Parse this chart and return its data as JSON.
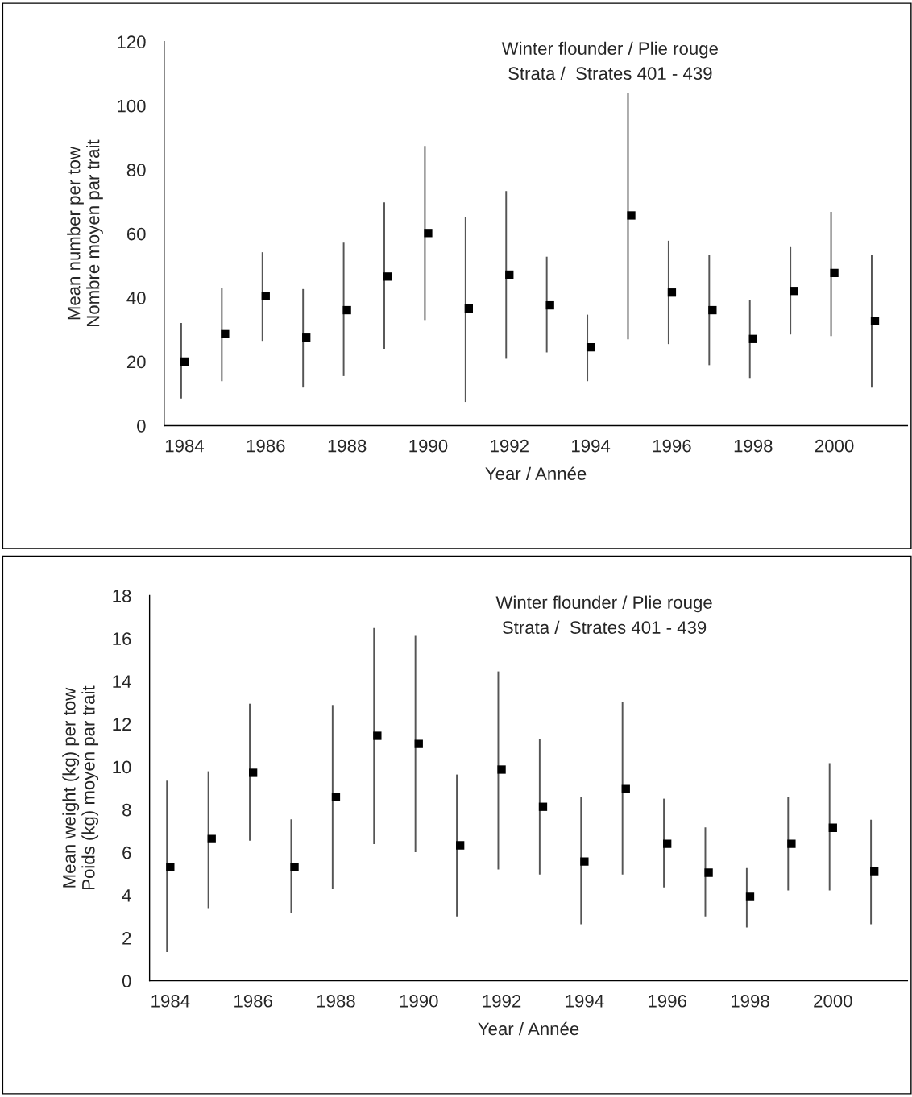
{
  "chart_data": [
    {
      "type": "scatter",
      "title": "Winter flounder / Plie rouge",
      "subtitle": "Strata /  Strates 401 - 439",
      "xlabel": "Year / Année",
      "ylabel": "Mean number per tow\nNombre moyen par trait",
      "categories": [
        "1984",
        null,
        "1986",
        null,
        "1988",
        null,
        "1990",
        null,
        "1992",
        null,
        "1994",
        null,
        "1996",
        null,
        "1998",
        null,
        "2000",
        null
      ],
      "series": [
        {
          "color": "#000000",
          "values": [
            20.0,
            28.6,
            40.6,
            27.5,
            36.1,
            46.6,
            60.2,
            36.6,
            47.2,
            37.6,
            24.5,
            65.7,
            41.6,
            36.1,
            27.1,
            42.1,
            47.7,
            32.6
          ],
          "errors": [
            [
              8.5,
              32.1
            ],
            [
              13.9,
              43.1
            ],
            [
              26.5,
              54.2
            ],
            [
              11.9,
              42.7
            ],
            [
              15.5,
              57.2
            ],
            [
              24.0,
              69.8
            ],
            [
              33.0,
              87.4
            ],
            [
              7.4,
              65.2
            ],
            [
              20.9,
              73.3
            ],
            [
              22.9,
              52.8
            ],
            [
              13.9,
              34.7
            ],
            [
              27.0,
              103.9
            ],
            [
              25.5,
              57.8
            ],
            [
              18.9,
              53.3
            ],
            [
              14.9,
              39.2
            ],
            [
              28.5,
              55.8
            ],
            [
              28.0,
              66.8
            ],
            [
              11.9,
              53.3
            ]
          ]
        }
      ],
      "ylim": [
        0,
        120
      ],
      "yticks": [
        0,
        20,
        40,
        60,
        80,
        100,
        120
      ],
      "marker": "square",
      "grid": false,
      "legend": false
    },
    {
      "type": "scatter",
      "title": "Winter flounder / Plie rouge",
      "subtitle": "Strata /  Strates 401 - 439",
      "xlabel": "Year / Année",
      "ylabel": "Mean weight (kg) per tow\nPoids (kg) moyen par trait",
      "categories": [
        "1984",
        null,
        "1986",
        null,
        "1988",
        null,
        "1990",
        null,
        "1992",
        null,
        "1994",
        null,
        "1996",
        null,
        "1998",
        null,
        "2000",
        null
      ],
      "series": [
        {
          "color": "#000000",
          "values": [
            5.33,
            6.63,
            9.72,
            5.33,
            8.59,
            11.45,
            11.07,
            6.33,
            9.87,
            8.13,
            5.57,
            8.96,
            6.4,
            5.05,
            3.92,
            6.4,
            7.15,
            5.12
          ],
          "errors": [
            [
              1.34,
              9.35
            ],
            [
              3.39,
              9.79
            ],
            [
              6.55,
              12.95
            ],
            [
              3.16,
              7.54
            ],
            [
              4.28,
              12.89
            ],
            [
              6.39,
              16.49
            ],
            [
              6.01,
              16.12
            ],
            [
              3.01,
              9.64
            ],
            [
              5.2,
              14.46
            ],
            [
              4.97,
              11.3
            ],
            [
              2.64,
              8.59
            ],
            [
              4.97,
              13.03
            ],
            [
              4.36,
              8.51
            ],
            [
              3.01,
              7.17
            ],
            [
              2.49,
              5.27
            ],
            [
              4.22,
              8.59
            ],
            [
              4.22,
              10.17
            ],
            [
              2.64,
              7.53
            ]
          ]
        }
      ],
      "ylim": [
        0,
        18
      ],
      "yticks": [
        0,
        2,
        4,
        6,
        8,
        10,
        12,
        14,
        16,
        18
      ],
      "marker": "square",
      "grid": false,
      "legend": false
    }
  ]
}
